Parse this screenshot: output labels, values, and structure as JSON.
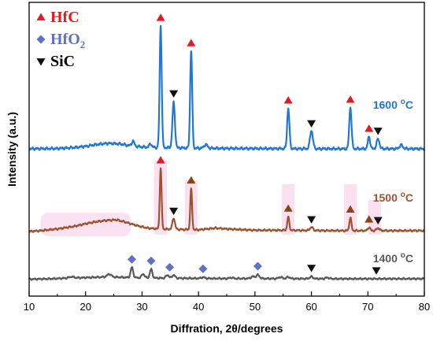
{
  "chart_data": {
    "type": "line",
    "title": "",
    "xlabel": "Diffration, 2θ/degrees",
    "ylabel": "Intensity (a.u.)",
    "xlim": [
      10,
      80
    ],
    "xticks": [
      "10",
      "20",
      "30",
      "40",
      "50",
      "60",
      "70",
      "80"
    ],
    "grid": false,
    "legend": {
      "placement": "top-left",
      "entries": [
        {
          "marker": "triangle-up",
          "color": "#e8191b",
          "label": "HfC",
          "sub": ""
        },
        {
          "marker": "diamond",
          "color": "#5b72c8",
          "label": "HfO",
          "sub": "2"
        },
        {
          "marker": "triangle-down",
          "color": "#111111",
          "label": "SiC",
          "sub": ""
        }
      ]
    },
    "series": [
      {
        "name": "1600 °C",
        "color": "#1f78d8",
        "label_temp": "1600",
        "label_unit": "oC",
        "baseline_x": [
          10,
          15,
          18,
          20,
          22,
          24,
          26,
          28,
          30,
          33,
          36,
          40,
          45,
          50,
          55,
          60,
          65,
          70,
          75,
          80
        ],
        "baseline_y": [
          2,
          2.2,
          3,
          4,
          5.5,
          6.5,
          6,
          4.5,
          3.5,
          3,
          2.8,
          2.5,
          2.3,
          2.2,
          2.1,
          2,
          2,
          2,
          2,
          2
        ],
        "peaks": [
          {
            "x": 28.4,
            "h": 4,
            "w": 0.22
          },
          {
            "x": 31.5,
            "h": 3,
            "w": 0.2
          },
          {
            "x": 33.3,
            "h": 100,
            "w": 0.18
          },
          {
            "x": 35.6,
            "h": 37,
            "w": 0.22
          },
          {
            "x": 38.7,
            "h": 80,
            "w": 0.18
          },
          {
            "x": 41.3,
            "h": 3,
            "w": 0.3
          },
          {
            "x": 55.9,
            "h": 33,
            "w": 0.2
          },
          {
            "x": 60.0,
            "h": 15,
            "w": 0.25
          },
          {
            "x": 66.9,
            "h": 34,
            "w": 0.2
          },
          {
            "x": 70.2,
            "h": 10,
            "w": 0.2
          },
          {
            "x": 71.8,
            "h": 8,
            "w": 0.25
          },
          {
            "x": 75.9,
            "h": 3,
            "w": 0.3
          }
        ]
      },
      {
        "name": "1500 °C",
        "color": "#a0522d",
        "label_temp": "1500",
        "label_unit": "oC",
        "baseline_x": [
          10,
          12,
          15,
          18,
          20,
          22,
          24,
          25.5,
          27,
          29,
          31,
          33,
          36,
          40,
          43,
          45,
          50,
          55,
          60,
          65,
          70,
          75,
          80
        ],
        "baseline_y": [
          0,
          1,
          3,
          6,
          9,
          11.5,
          13,
          13.5,
          11,
          7,
          4,
          3,
          2.5,
          2,
          4,
          3,
          1.5,
          1.5,
          1.2,
          1,
          1,
          1,
          1
        ],
        "peaks": [
          {
            "x": 33.3,
            "h": 70,
            "w": 0.16
          },
          {
            "x": 35.6,
            "h": 13,
            "w": 0.22
          },
          {
            "x": 38.7,
            "h": 47,
            "w": 0.16
          },
          {
            "x": 55.9,
            "h": 15,
            "w": 0.18
          },
          {
            "x": 60.0,
            "h": 4,
            "w": 0.25
          },
          {
            "x": 66.9,
            "h": 15,
            "w": 0.18
          },
          {
            "x": 70.2,
            "h": 4,
            "w": 0.2
          },
          {
            "x": 71.8,
            "h": 3,
            "w": 0.25
          }
        ]
      },
      {
        "name": "1400 °C",
        "color": "#595959",
        "label_temp": "1400",
        "label_unit": "oC",
        "baseline_x": [
          10,
          14,
          17,
          20,
          22,
          24,
          26,
          28,
          32,
          36,
          40,
          45,
          50,
          55,
          60,
          65,
          70,
          75,
          80
        ],
        "baseline_y": [
          0.5,
          1,
          2,
          2.5,
          3,
          3.5,
          3,
          2.5,
          2,
          1.8,
          1.5,
          1.3,
          1.3,
          1.2,
          1.1,
          1,
          1,
          1,
          1
        ],
        "peaks": [
          {
            "x": 17.5,
            "h": 1.5,
            "w": 0.4
          },
          {
            "x": 24.2,
            "h": 3.5,
            "w": 0.35
          },
          {
            "x": 28.2,
            "h": 13,
            "w": 0.22
          },
          {
            "x": 30.2,
            "h": 5,
            "w": 0.25
          },
          {
            "x": 31.6,
            "h": 11,
            "w": 0.22
          },
          {
            "x": 34.5,
            "h": 4,
            "w": 0.25
          },
          {
            "x": 35.6,
            "h": 4,
            "w": 0.25
          },
          {
            "x": 40.8,
            "h": 1.5,
            "w": 0.3
          },
          {
            "x": 45.8,
            "h": 1.2,
            "w": 0.3
          },
          {
            "x": 49.6,
            "h": 2.5,
            "w": 0.3
          },
          {
            "x": 50.5,
            "h": 4.5,
            "w": 0.3
          },
          {
            "x": 54.5,
            "h": 2,
            "w": 0.3
          },
          {
            "x": 55.9,
            "h": 2,
            "w": 0.3
          },
          {
            "x": 60.0,
            "h": 2.5,
            "w": 0.3
          },
          {
            "x": 62.8,
            "h": 1.5,
            "w": 0.3
          }
        ]
      }
    ],
    "markers": [
      {
        "series": 0,
        "type": "triangle-up",
        "color": "#e8191b",
        "x": 33.3
      },
      {
        "series": 0,
        "type": "triangle-up",
        "color": "#e8191b",
        "x": 38.7
      },
      {
        "series": 0,
        "type": "triangle-down",
        "color": "#111111",
        "x": 35.6
      },
      {
        "series": 0,
        "type": "triangle-up",
        "color": "#e8191b",
        "x": 55.9
      },
      {
        "series": 0,
        "type": "triangle-down",
        "color": "#111111",
        "x": 60.0
      },
      {
        "series": 0,
        "type": "triangle-up",
        "color": "#e8191b",
        "x": 66.9
      },
      {
        "series": 0,
        "type": "triangle-up",
        "color": "#e8191b",
        "x": 70.2
      },
      {
        "series": 0,
        "type": "triangle-down",
        "color": "#111111",
        "x": 71.8
      },
      {
        "series": 1,
        "type": "triangle-up",
        "color": "#e8191b",
        "x": 33.3
      },
      {
        "series": 1,
        "type": "triangle-up",
        "color": "#8b4513",
        "x": 38.7
      },
      {
        "series": 1,
        "type": "triangle-down",
        "color": "#111111",
        "x": 35.6
      },
      {
        "series": 1,
        "type": "triangle-up",
        "color": "#8b4513",
        "x": 55.9
      },
      {
        "series": 1,
        "type": "triangle-down",
        "color": "#111111",
        "x": 60.0
      },
      {
        "series": 1,
        "type": "triangle-up",
        "color": "#8b4513",
        "x": 66.9
      },
      {
        "series": 1,
        "type": "triangle-up",
        "color": "#8b4513",
        "x": 70.2
      },
      {
        "series": 1,
        "type": "triangle-down",
        "color": "#111111",
        "x": 71.8
      },
      {
        "series": 2,
        "type": "diamond",
        "color": "#5b72c8",
        "x": 28.2
      },
      {
        "series": 2,
        "type": "diamond",
        "color": "#5b72c8",
        "x": 31.6
      },
      {
        "series": 2,
        "type": "diamond",
        "color": "#5b72c8",
        "x": 34.9
      },
      {
        "series": 2,
        "type": "diamond",
        "color": "#5b72c8",
        "x": 40.8
      },
      {
        "series": 2,
        "type": "diamond",
        "color": "#5b72c8",
        "x": 50.5
      },
      {
        "series": 2,
        "type": "triangle-down",
        "color": "#111111",
        "x": 60.0
      },
      {
        "series": 2,
        "type": "triangle-down",
        "color": "#111111",
        "x": 71.5
      }
    ]
  }
}
